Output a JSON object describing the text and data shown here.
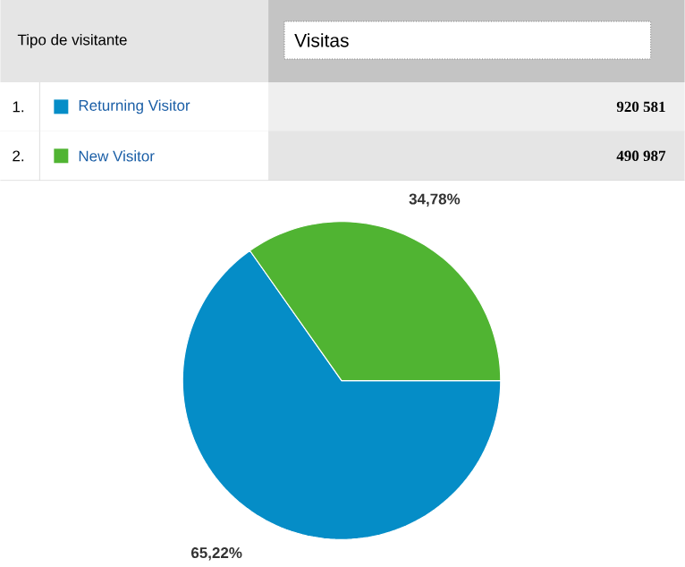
{
  "chart_data": {
    "type": "pie",
    "legend_title": "Tipo de visitante",
    "ylabel": "Visitas",
    "categories": [
      "Returning Visitor",
      "New Visitor"
    ],
    "values": [
      920581,
      490987
    ],
    "colors": [
      "#058dc7",
      "#50b432"
    ],
    "value_labels": [
      "920 581",
      "490 987"
    ],
    "annotations": [
      "65,22%",
      "34,78%",
      "1.",
      "2."
    ],
    "legend": "top"
  }
}
